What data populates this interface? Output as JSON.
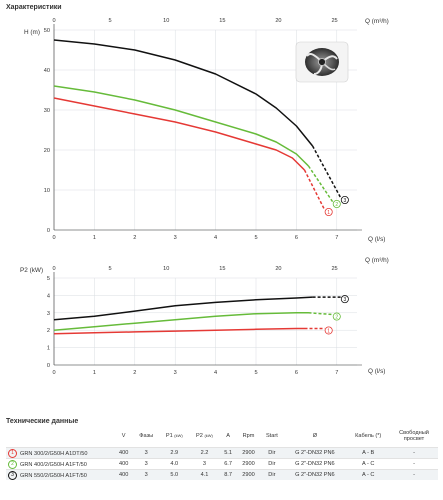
{
  "headings": {
    "characteristics": "Характеристики",
    "technical_data": "Технические данные"
  },
  "impeller_image_icon": "pump-impeller-photo",
  "chart_data": [
    {
      "type": "line",
      "y_axis_label": "H (m)",
      "x_axis_label_top": "Q (m³/h)",
      "x_axis_label_bottom": "Q (l/s)",
      "xlim_ls": [
        0,
        7.5
      ],
      "xticks_ls": [
        "0",
        "1",
        "2",
        "3",
        "4",
        "5",
        "6",
        "7"
      ],
      "xticks_m3h": [
        "0",
        "5",
        "10",
        "15",
        "20",
        "25"
      ],
      "ylim": [
        0,
        50
      ],
      "yticks": [
        "0",
        "10",
        "20",
        "30",
        "40",
        "50"
      ],
      "grid": true,
      "series": [
        {
          "label": "1",
          "color": "#e53935",
          "x": [
            0,
            1,
            2,
            3,
            4,
            5,
            5.5,
            5.9,
            6.2
          ],
          "y": [
            33,
            31,
            29,
            27,
            24.5,
            21.5,
            20,
            18,
            15
          ],
          "dashed_x": [
            6.2,
            6.7
          ],
          "dashed_y": [
            15,
            5
          ]
        },
        {
          "label": "2",
          "color": "#66bb3a",
          "x": [
            0,
            1,
            2,
            3,
            4,
            5,
            5.5,
            6.0,
            6.3
          ],
          "y": [
            36,
            34.5,
            32.5,
            30,
            27,
            24,
            22,
            19,
            16
          ],
          "dashed_x": [
            6.3,
            6.9
          ],
          "dashed_y": [
            16,
            7
          ]
        },
        {
          "label": "3",
          "color": "#111111",
          "x": [
            0,
            1,
            2,
            3,
            4,
            5,
            5.5,
            6.0,
            6.4
          ],
          "y": [
            47.5,
            46.5,
            45,
            42.5,
            39,
            34,
            30.5,
            26,
            21
          ],
          "dashed_x": [
            6.4,
            7.1
          ],
          "dashed_y": [
            21,
            8
          ]
        }
      ]
    },
    {
      "type": "line",
      "y_axis_label": "P2 (kW)",
      "x_axis_label_top": "Q (m³/h)",
      "x_axis_label_bottom": "Q (l/s)",
      "xlim_ls": [
        0,
        7.5
      ],
      "xticks_ls": [
        "0",
        "1",
        "2",
        "3",
        "4",
        "5",
        "6",
        "7"
      ],
      "xticks_m3h": [
        "0",
        "5",
        "10",
        "15",
        "20",
        "25"
      ],
      "ylim": [
        0,
        5
      ],
      "yticks": [
        "0",
        "1",
        "2",
        "3",
        "4",
        "5"
      ],
      "grid": true,
      "series": [
        {
          "label": "1",
          "color": "#e53935",
          "x": [
            0,
            1,
            2,
            3,
            4,
            5,
            6,
            6.2
          ],
          "y": [
            1.8,
            1.85,
            1.9,
            1.95,
            2.0,
            2.05,
            2.1,
            2.1
          ],
          "dashed_x": [
            6.2,
            6.7
          ],
          "dashed_y": [
            2.1,
            2.1
          ]
        },
        {
          "label": "2",
          "color": "#66bb3a",
          "x": [
            0,
            1,
            2,
            3,
            4,
            5,
            6,
            6.3
          ],
          "y": [
            2.0,
            2.2,
            2.4,
            2.6,
            2.8,
            2.95,
            3.0,
            3.0
          ],
          "dashed_x": [
            6.3,
            6.9
          ],
          "dashed_y": [
            3.0,
            2.9
          ]
        },
        {
          "label": "3",
          "color": "#111111",
          "x": [
            0,
            1,
            2,
            3,
            4,
            5,
            6,
            6.4
          ],
          "y": [
            2.6,
            2.8,
            3.1,
            3.4,
            3.6,
            3.75,
            3.85,
            3.9
          ],
          "dashed_x": [
            6.4,
            7.1
          ],
          "dashed_y": [
            3.9,
            3.9
          ]
        }
      ]
    }
  ],
  "table": {
    "headers": {
      "v": "V",
      "phases": "Фазы",
      "p1": "P1",
      "p1_unit": "(kW)",
      "p2": "P2",
      "p2_unit": "(kW)",
      "a": "A",
      "rpm": "Rpm",
      "start": "Start",
      "diameter": "Ø",
      "cable": "Кабель (*)",
      "free_passage": "Свободный просвет"
    },
    "rows": [
      {
        "num": "1",
        "model": "GRN 300/2/G50H A1DT/50",
        "v": "400",
        "phases": "3",
        "p1": "2.9",
        "p2": "2.2",
        "a": "5.1",
        "rpm": "2900",
        "start": "Dir",
        "diameter": "G 2\"-DN32 PN6",
        "cable": "A - B",
        "free_passage": "-"
      },
      {
        "num": "2",
        "model": "GRN 400/2/G50H A1FT/50",
        "v": "400",
        "phases": "3",
        "p1": "4.0",
        "p2": "3",
        "a": "6.7",
        "rpm": "2900",
        "start": "Dir",
        "diameter": "G 2\"-DN32 PN6",
        "cable": "A - C",
        "free_passage": "-"
      },
      {
        "num": "3",
        "model": "GRN 550/2/G50H A1FT/50",
        "v": "400",
        "phases": "3",
        "p1": "5.0",
        "p2": "4.1",
        "a": "8.7",
        "rpm": "2900",
        "start": "Dir",
        "diameter": "G 2\"-DN32 PN6",
        "cable": "A - C",
        "free_passage": "-"
      }
    ]
  }
}
